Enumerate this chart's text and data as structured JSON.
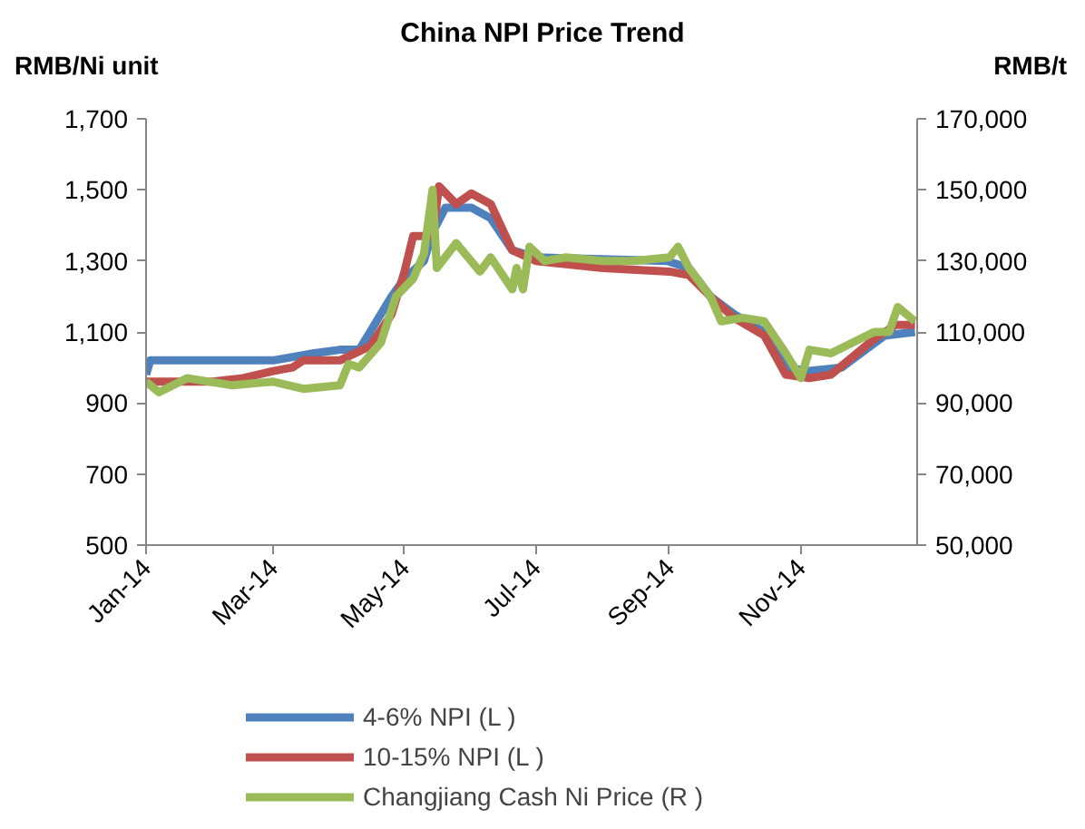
{
  "chart_data": {
    "type": "line",
    "title": "China NPI Price Trend",
    "ylabel": "RMB/Ni unit",
    "y2label": "RMB/t",
    "xlim": [
      "2014-01-01",
      "2014-12-25"
    ],
    "xticks": [
      {
        "value": "2014-01-01",
        "label": "Jan-14"
      },
      {
        "value": "2014-03-01",
        "label": "Mar-14"
      },
      {
        "value": "2014-05-01",
        "label": "May-14"
      },
      {
        "value": "2014-07-01",
        "label": "Jul-14"
      },
      {
        "value": "2014-09-01",
        "label": "Sep-14"
      },
      {
        "value": "2014-11-01",
        "label": "Nov-14"
      }
    ],
    "ylim": [
      500,
      1700
    ],
    "yticks": [
      {
        "value": 500,
        "label": "500"
      },
      {
        "value": 700,
        "label": "700"
      },
      {
        "value": 900,
        "label": "900"
      },
      {
        "value": 1100,
        "label": "1,100"
      },
      {
        "value": 1300,
        "label": "1,300"
      },
      {
        "value": 1500,
        "label": "1,500"
      },
      {
        "value": 1700,
        "label": "1,700"
      }
    ],
    "y2lim": [
      50000,
      170000
    ],
    "y2ticks": [
      {
        "value": 50000,
        "label": "50,000"
      },
      {
        "value": 70000,
        "label": "70,000"
      },
      {
        "value": 90000,
        "label": "90,000"
      },
      {
        "value": 110000,
        "label": "110,000"
      },
      {
        "value": 130000,
        "label": "130,000"
      },
      {
        "value": 150000,
        "label": "150,000"
      },
      {
        "value": 170000,
        "label": "170,000"
      }
    ],
    "grid": false,
    "legend": "bottom",
    "marker": "none",
    "line_style": "solid",
    "series": [
      {
        "name": "4-6% NPI (L )",
        "color": "#4f81bd",
        "x": [
          "2014-01-01",
          "2014-01-03",
          "2014-03-01",
          "2014-03-20",
          "2014-04-01",
          "2014-04-10",
          "2014-04-15",
          "2014-04-25",
          "2014-05-01",
          "2014-05-10",
          "2014-05-14",
          "2014-05-20",
          "2014-06-01",
          "2014-06-10",
          "2014-06-20",
          "2014-07-01",
          "2014-08-31",
          "2014-09-10",
          "2014-09-20",
          "2014-10-01",
          "2014-10-15",
          "2014-10-25",
          "2014-11-05",
          "2014-11-20",
          "2014-12-01",
          "2014-12-10",
          "2014-12-24"
        ],
        "values": [
          980,
          1020,
          1020,
          1040,
          1050,
          1050,
          1100,
          1200,
          1250,
          1300,
          1380,
          1450,
          1450,
          1420,
          1330,
          1310,
          1300,
          1280,
          1200,
          1150,
          1100,
          1000,
          990,
          1000,
          1050,
          1090,
          1100
        ]
      },
      {
        "name": "10-15% NPI (L )",
        "color": "#c0504d",
        "x": [
          "2014-01-01",
          "2014-02-01",
          "2014-02-15",
          "2014-03-01",
          "2014-03-10",
          "2014-03-15",
          "2014-04-01",
          "2014-04-15",
          "2014-04-25",
          "2014-05-01",
          "2014-05-05",
          "2014-05-14",
          "2014-05-17",
          "2014-05-25",
          "2014-06-01",
          "2014-06-10",
          "2014-06-20",
          "2014-07-01",
          "2014-08-01",
          "2014-09-01",
          "2014-09-10",
          "2014-09-20",
          "2014-10-01",
          "2014-10-15",
          "2014-10-25",
          "2014-11-05",
          "2014-11-15",
          "2014-11-25",
          "2014-12-05",
          "2014-12-15",
          "2014-12-24"
        ],
        "values": [
          960,
          960,
          970,
          990,
          1000,
          1020,
          1020,
          1060,
          1150,
          1270,
          1370,
          1370,
          1510,
          1460,
          1490,
          1460,
          1330,
          1300,
          1280,
          1270,
          1260,
          1200,
          1140,
          1090,
          980,
          970,
          980,
          1030,
          1080,
          1120,
          1120
        ]
      },
      {
        "name": "Changjiang Cash Ni Price (R )",
        "color": "#9bbb59",
        "axis": "y2",
        "x": [
          "2014-01-01",
          "2014-01-07",
          "2014-01-20",
          "2014-02-10",
          "2014-03-01",
          "2014-03-15",
          "2014-04-01",
          "2014-04-05",
          "2014-04-10",
          "2014-04-20",
          "2014-04-27",
          "2014-05-05",
          "2014-05-10",
          "2014-05-14",
          "2014-05-16",
          "2014-05-25",
          "2014-06-05",
          "2014-06-10",
          "2014-06-20",
          "2014-06-22",
          "2014-06-25",
          "2014-06-28",
          "2014-07-05",
          "2014-07-15",
          "2014-08-01",
          "2014-08-15",
          "2014-09-01",
          "2014-09-05",
          "2014-09-10",
          "2014-09-20",
          "2014-09-25",
          "2014-10-05",
          "2014-10-15",
          "2014-10-25",
          "2014-11-01",
          "2014-11-05",
          "2014-11-15",
          "2014-11-25",
          "2014-12-05",
          "2014-12-12",
          "2014-12-16",
          "2014-12-24"
        ],
        "values": [
          96000,
          93000,
          97000,
          95000,
          96000,
          94000,
          95000,
          101000,
          100000,
          107000,
          120000,
          125000,
          132000,
          150000,
          128000,
          135000,
          127000,
          131000,
          122000,
          128000,
          122000,
          134000,
          130000,
          131000,
          130000,
          130000,
          131000,
          134000,
          128000,
          120000,
          113000,
          114000,
          113000,
          104000,
          97000,
          105000,
          104000,
          107000,
          110000,
          110000,
          117000,
          113000
        ]
      }
    ]
  }
}
